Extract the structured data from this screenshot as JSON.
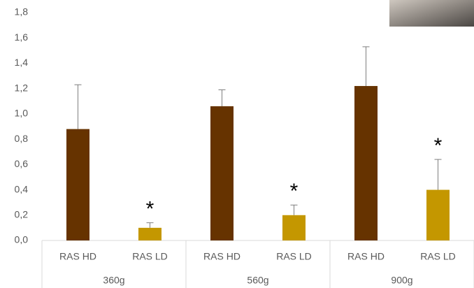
{
  "chart_data": {
    "type": "bar",
    "groups": [
      "360g",
      "560g",
      "900g"
    ],
    "series": [
      {
        "name": "RAS HD",
        "color": "#663300",
        "values": [
          0.88,
          1.06,
          1.22
        ],
        "errors": [
          0.35,
          0.13,
          0.31
        ]
      },
      {
        "name": "RAS LD",
        "color": "#c49700",
        "values": [
          0.1,
          0.2,
          0.4
        ],
        "errors": [
          0.04,
          0.08,
          0.24
        ]
      }
    ],
    "annotations": [
      {
        "text": "*",
        "series": 1,
        "group": 0
      },
      {
        "text": "*",
        "series": 1,
        "group": 1
      },
      {
        "text": "*",
        "series": 1,
        "group": 2
      }
    ],
    "ylim": [
      0,
      1.8
    ],
    "yticks": [
      {
        "value": 0,
        "label": "0,0"
      },
      {
        "value": 0.2,
        "label": "0,2"
      },
      {
        "value": 0.4,
        "label": "0,4"
      },
      {
        "value": 0.6,
        "label": "0,6"
      },
      {
        "value": 0.8,
        "label": "0,8"
      },
      {
        "value": 1.0,
        "label": "1,0"
      },
      {
        "value": 1.2,
        "label": "1,2"
      },
      {
        "value": 1.4,
        "label": "1,4"
      },
      {
        "value": 1.6,
        "label": "1,6"
      },
      {
        "value": 1.8,
        "label": "1,8"
      }
    ],
    "grid": false
  }
}
